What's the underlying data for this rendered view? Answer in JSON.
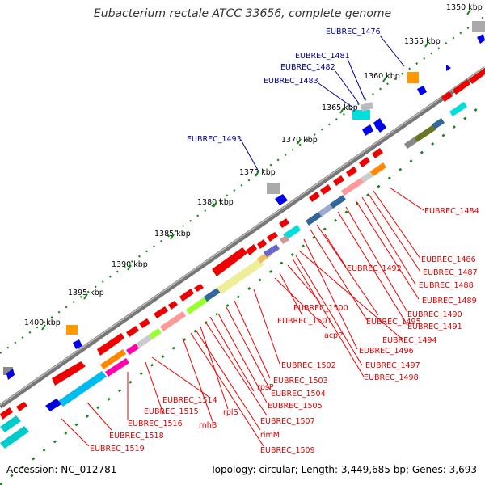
{
  "title": "Eubacterium rectale ATCC 33656, complete genome",
  "footer": {
    "accession": "Accession: NC_012781",
    "stats": "Topology: circular; Length: 3,449,685 bp; Genes: 3,693"
  },
  "ticks": [
    {
      "label": "1350 kbp"
    },
    {
      "label": "1355 kbp"
    },
    {
      "label": "1360 kbp"
    },
    {
      "label": "1365 kbp"
    },
    {
      "label": "1370 kbp"
    },
    {
      "label": "1375 kbp"
    },
    {
      "label": "1380 kbp"
    },
    {
      "label": "1385 kbp"
    },
    {
      "label": "1390 kbp"
    },
    {
      "label": "1395 kbp"
    },
    {
      "label": "1400 kbp"
    }
  ],
  "outer_genes": [
    {
      "label": "EUBREC_1476"
    },
    {
      "label": "EUBREC_1481"
    },
    {
      "label": "EUBREC_1482"
    },
    {
      "label": "EUBREC_1483"
    },
    {
      "label": "EUBREC_1493"
    }
  ],
  "inner_genes": [
    {
      "label": "EUBREC_1484"
    },
    {
      "label": "EUBREC_1486"
    },
    {
      "label": "EUBREC_1487"
    },
    {
      "label": "EUBREC_1488"
    },
    {
      "label": "EUBREC_1489"
    },
    {
      "label": "EUBREC_1490"
    },
    {
      "label": "EUBREC_1491"
    },
    {
      "label": "EUBREC_1492"
    },
    {
      "label": "EUBREC_1494"
    },
    {
      "label": "EUBREC_1495"
    },
    {
      "label": "EUBREC_1496"
    },
    {
      "label": "EUBREC_1497"
    },
    {
      "label": "EUBREC_1498"
    },
    {
      "label": "EUBREC_1500"
    },
    {
      "label": "EUBREC_1501"
    },
    {
      "label": "acpP"
    },
    {
      "label": "EUBREC_1502"
    },
    {
      "label": "EUBREC_1503"
    },
    {
      "label": "EUBREC_1504"
    },
    {
      "label": "EUBREC_1505"
    },
    {
      "label": "rpsP"
    },
    {
      "label": "EUBREC_1507"
    },
    {
      "label": "rplS"
    },
    {
      "label": "rimM"
    },
    {
      "label": "EUBREC_1509"
    },
    {
      "label": "EUBREC_1514"
    },
    {
      "label": "EUBREC_1515"
    },
    {
      "label": "rnhB"
    },
    {
      "label": "EUBREC_1516"
    },
    {
      "label": "EUBREC_1518"
    },
    {
      "label": "EUBREC_1519"
    }
  ],
  "colors": {
    "forward_gene": "#ff0000",
    "reverse_gene": "#0000ff",
    "outer_label": "#000099",
    "inner_label": "#dd0000",
    "backbone": "#777777",
    "tick": "#118811"
  }
}
